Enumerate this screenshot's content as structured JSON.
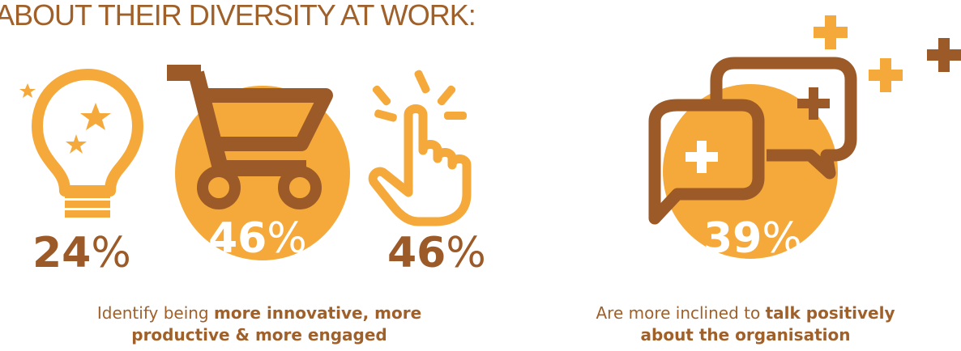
{
  "headline": "ABOUT THEIR DIVERSITY AT WORK:",
  "colors": {
    "orange": "#f5a93b",
    "brown": "#9b5a27",
    "light_orange": "#f7b24a"
  },
  "stats": [
    {
      "value": "24",
      "unit": "%",
      "icon": "lightbulb-icon"
    },
    {
      "value": "46",
      "unit": "%",
      "icon": "shopping-cart-icon"
    },
    {
      "value": "46",
      "unit": "%",
      "icon": "pointing-hand-icon"
    },
    {
      "value": "39",
      "unit": "%",
      "icon": "speech-bubbles-icon"
    }
  ],
  "captions": {
    "left": {
      "plain": "Identify being ",
      "bold_line1": "more innovative, more",
      "bold_line2": "productive & more engaged"
    },
    "right": {
      "plain": "Are more inclined to ",
      "bold_line1": "talk positively",
      "bold_line2": "about the organisation"
    }
  }
}
